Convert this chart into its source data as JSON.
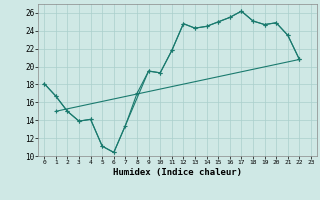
{
  "xlabel": "Humidex (Indice chaleur)",
  "background_color": "#cfe8e5",
  "grid_color": "#aacfcc",
  "line_color": "#1a7a6e",
  "xlim": [
    -0.5,
    23.5
  ],
  "ylim": [
    10,
    27
  ],
  "xticks": [
    0,
    1,
    2,
    3,
    4,
    5,
    6,
    7,
    8,
    9,
    10,
    11,
    12,
    13,
    14,
    15,
    16,
    17,
    18,
    19,
    20,
    21,
    22,
    23
  ],
  "yticks": [
    10,
    12,
    14,
    16,
    18,
    20,
    22,
    24,
    26
  ],
  "line1_x": [
    0,
    1,
    2,
    3,
    4,
    5,
    6,
    7,
    8,
    9,
    10,
    11,
    12,
    13,
    14,
    15,
    16,
    17,
    18,
    19,
    20,
    21,
    22
  ],
  "line1_y": [
    18.1,
    16.7,
    15.0,
    13.9,
    14.1,
    11.1,
    10.4,
    13.4,
    17.0,
    19.5,
    19.3,
    21.8,
    24.8,
    24.3,
    24.5,
    25.0,
    25.5,
    26.2,
    25.1,
    24.7,
    24.9,
    23.5,
    20.8
  ],
  "line2_x": [
    1,
    22
  ],
  "line2_y": [
    15.0,
    20.8
  ],
  "line3_x": [
    0,
    1,
    2,
    3,
    4,
    5,
    6,
    9,
    10,
    11,
    12,
    13,
    14,
    15,
    16,
    17,
    18,
    19,
    20,
    21,
    22
  ],
  "line3_y": [
    18.1,
    16.7,
    15.0,
    13.9,
    14.1,
    11.1,
    10.4,
    19.5,
    19.3,
    21.8,
    24.8,
    24.3,
    24.5,
    25.0,
    25.5,
    26.2,
    25.1,
    24.7,
    24.9,
    23.5,
    20.8
  ]
}
